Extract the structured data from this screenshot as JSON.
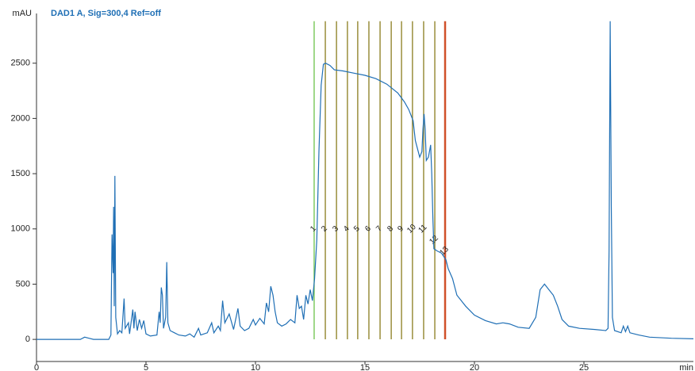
{
  "chart_data": {
    "type": "line",
    "title": "DAD1 A, Sig=300,4 Ref=off",
    "y_label": "mAU",
    "x_label": "min",
    "xlim": [
      0,
      30
    ],
    "ylim": [
      -200,
      2950
    ],
    "xticks": [
      0,
      5,
      10,
      15,
      20,
      25
    ],
    "yticks": [
      0,
      500,
      1000,
      1500,
      2000,
      2500
    ],
    "series": [
      {
        "color": "#1f6fb5",
        "x": [
          0,
          2,
          2.2,
          2.4,
          2.6,
          3.3,
          3.4,
          3.45,
          3.5,
          3.52,
          3.55,
          3.58,
          3.62,
          3.7,
          3.8,
          3.9,
          4.0,
          4.05,
          4.2,
          4.25,
          4.4,
          4.45,
          4.5,
          4.6,
          4.7,
          4.8,
          4.9,
          5.0,
          5.2,
          5.5,
          5.6,
          5.65,
          5.7,
          5.75,
          5.8,
          5.9,
          5.95,
          6.0,
          6.1,
          6.3,
          6.5,
          6.8,
          7.0,
          7.2,
          7.4,
          7.5,
          7.8,
          8.0,
          8.1,
          8.3,
          8.4,
          8.5,
          8.6,
          8.8,
          9.0,
          9.2,
          9.3,
          9.5,
          9.7,
          9.9,
          10.0,
          10.2,
          10.4,
          10.5,
          10.6,
          10.7,
          10.8,
          10.9,
          11.0,
          11.2,
          11.4,
          11.6,
          11.8,
          11.9,
          12.0,
          12.1,
          12.2,
          12.3,
          12.4,
          12.5,
          12.6,
          12.7,
          12.8,
          12.9,
          13.0,
          13.1,
          13.2,
          13.4,
          13.6,
          14,
          14.5,
          15,
          15.5,
          16,
          16.5,
          16.8,
          17,
          17.2,
          17.3,
          17.5,
          17.6,
          17.65,
          17.7,
          17.75,
          17.8,
          17.9,
          18.0,
          18.05,
          18.1,
          18.15,
          18.3,
          18.5,
          18.7,
          18.8,
          19,
          19.2,
          19.4,
          19.6,
          20,
          20.5,
          21,
          21.3,
          21.6,
          22,
          22.5,
          22.8,
          23,
          23.2,
          23.4,
          23.6,
          23.8,
          24,
          24.3,
          24.8,
          25.5,
          26.0,
          26.1,
          26.15,
          26.2,
          26.25,
          26.3,
          26.4,
          26.7,
          26.8,
          26.9,
          27.0,
          27.1,
          27.5,
          28,
          29,
          30
        ],
        "values": [
          0,
          0,
          20,
          10,
          0,
          0,
          40,
          950,
          600,
          1200,
          300,
          1480,
          200,
          50,
          80,
          60,
          370,
          100,
          150,
          50,
          270,
          100,
          250,
          80,
          180,
          100,
          170,
          50,
          30,
          40,
          250,
          150,
          470,
          400,
          100,
          200,
          700,
          150,
          80,
          60,
          40,
          30,
          50,
          20,
          100,
          40,
          60,
          150,
          60,
          120,
          80,
          350,
          150,
          230,
          90,
          280,
          120,
          80,
          100,
          180,
          130,
          190,
          140,
          330,
          250,
          480,
          400,
          250,
          150,
          120,
          140,
          180,
          150,
          400,
          280,
          300,
          180,
          400,
          320,
          450,
          350,
          550,
          900,
          1700,
          2300,
          2490,
          2500,
          2480,
          2440,
          2430,
          2410,
          2390,
          2360,
          2310,
          2230,
          2150,
          2080,
          1980,
          1800,
          1650,
          1700,
          1900,
          2040,
          1900,
          1620,
          1650,
          1760,
          1500,
          1100,
          820,
          800,
          780,
          720,
          640,
          550,
          400,
          350,
          300,
          220,
          170,
          140,
          150,
          140,
          110,
          100,
          200,
          450,
          500,
          450,
          400,
          300,
          180,
          120,
          100,
          90,
          80,
          100,
          800,
          2880,
          1200,
          200,
          80,
          60,
          120,
          70,
          120,
          60,
          40,
          20,
          10,
          5
        ]
      }
    ],
    "fractions": [
      {
        "label": "1",
        "x": 12.68,
        "color": "#6cc24a"
      },
      {
        "label": "2",
        "x": 13.19,
        "color": "#8a7d1e"
      },
      {
        "label": "3",
        "x": 13.7,
        "color": "#8a7d1e"
      },
      {
        "label": "4",
        "x": 14.2,
        "color": "#8a7d1e"
      },
      {
        "label": "5",
        "x": 14.67,
        "color": "#8a7d1e"
      },
      {
        "label": "6",
        "x": 15.18,
        "color": "#8a7d1e"
      },
      {
        "label": "7",
        "x": 15.69,
        "color": "#8a7d1e"
      },
      {
        "label": "8",
        "x": 16.2,
        "color": "#8a7d1e"
      },
      {
        "label": "9",
        "x": 16.67,
        "color": "#8a7d1e"
      },
      {
        "label": "10",
        "x": 17.17,
        "color": "#8a7d1e"
      },
      {
        "label": "11",
        "x": 17.68,
        "color": "#8a7d1e"
      },
      {
        "label": "12",
        "x": 18.19,
        "color": "#8a7d1e"
      },
      {
        "label": "13",
        "x": 18.66,
        "color": "#d0502a"
      }
    ]
  }
}
